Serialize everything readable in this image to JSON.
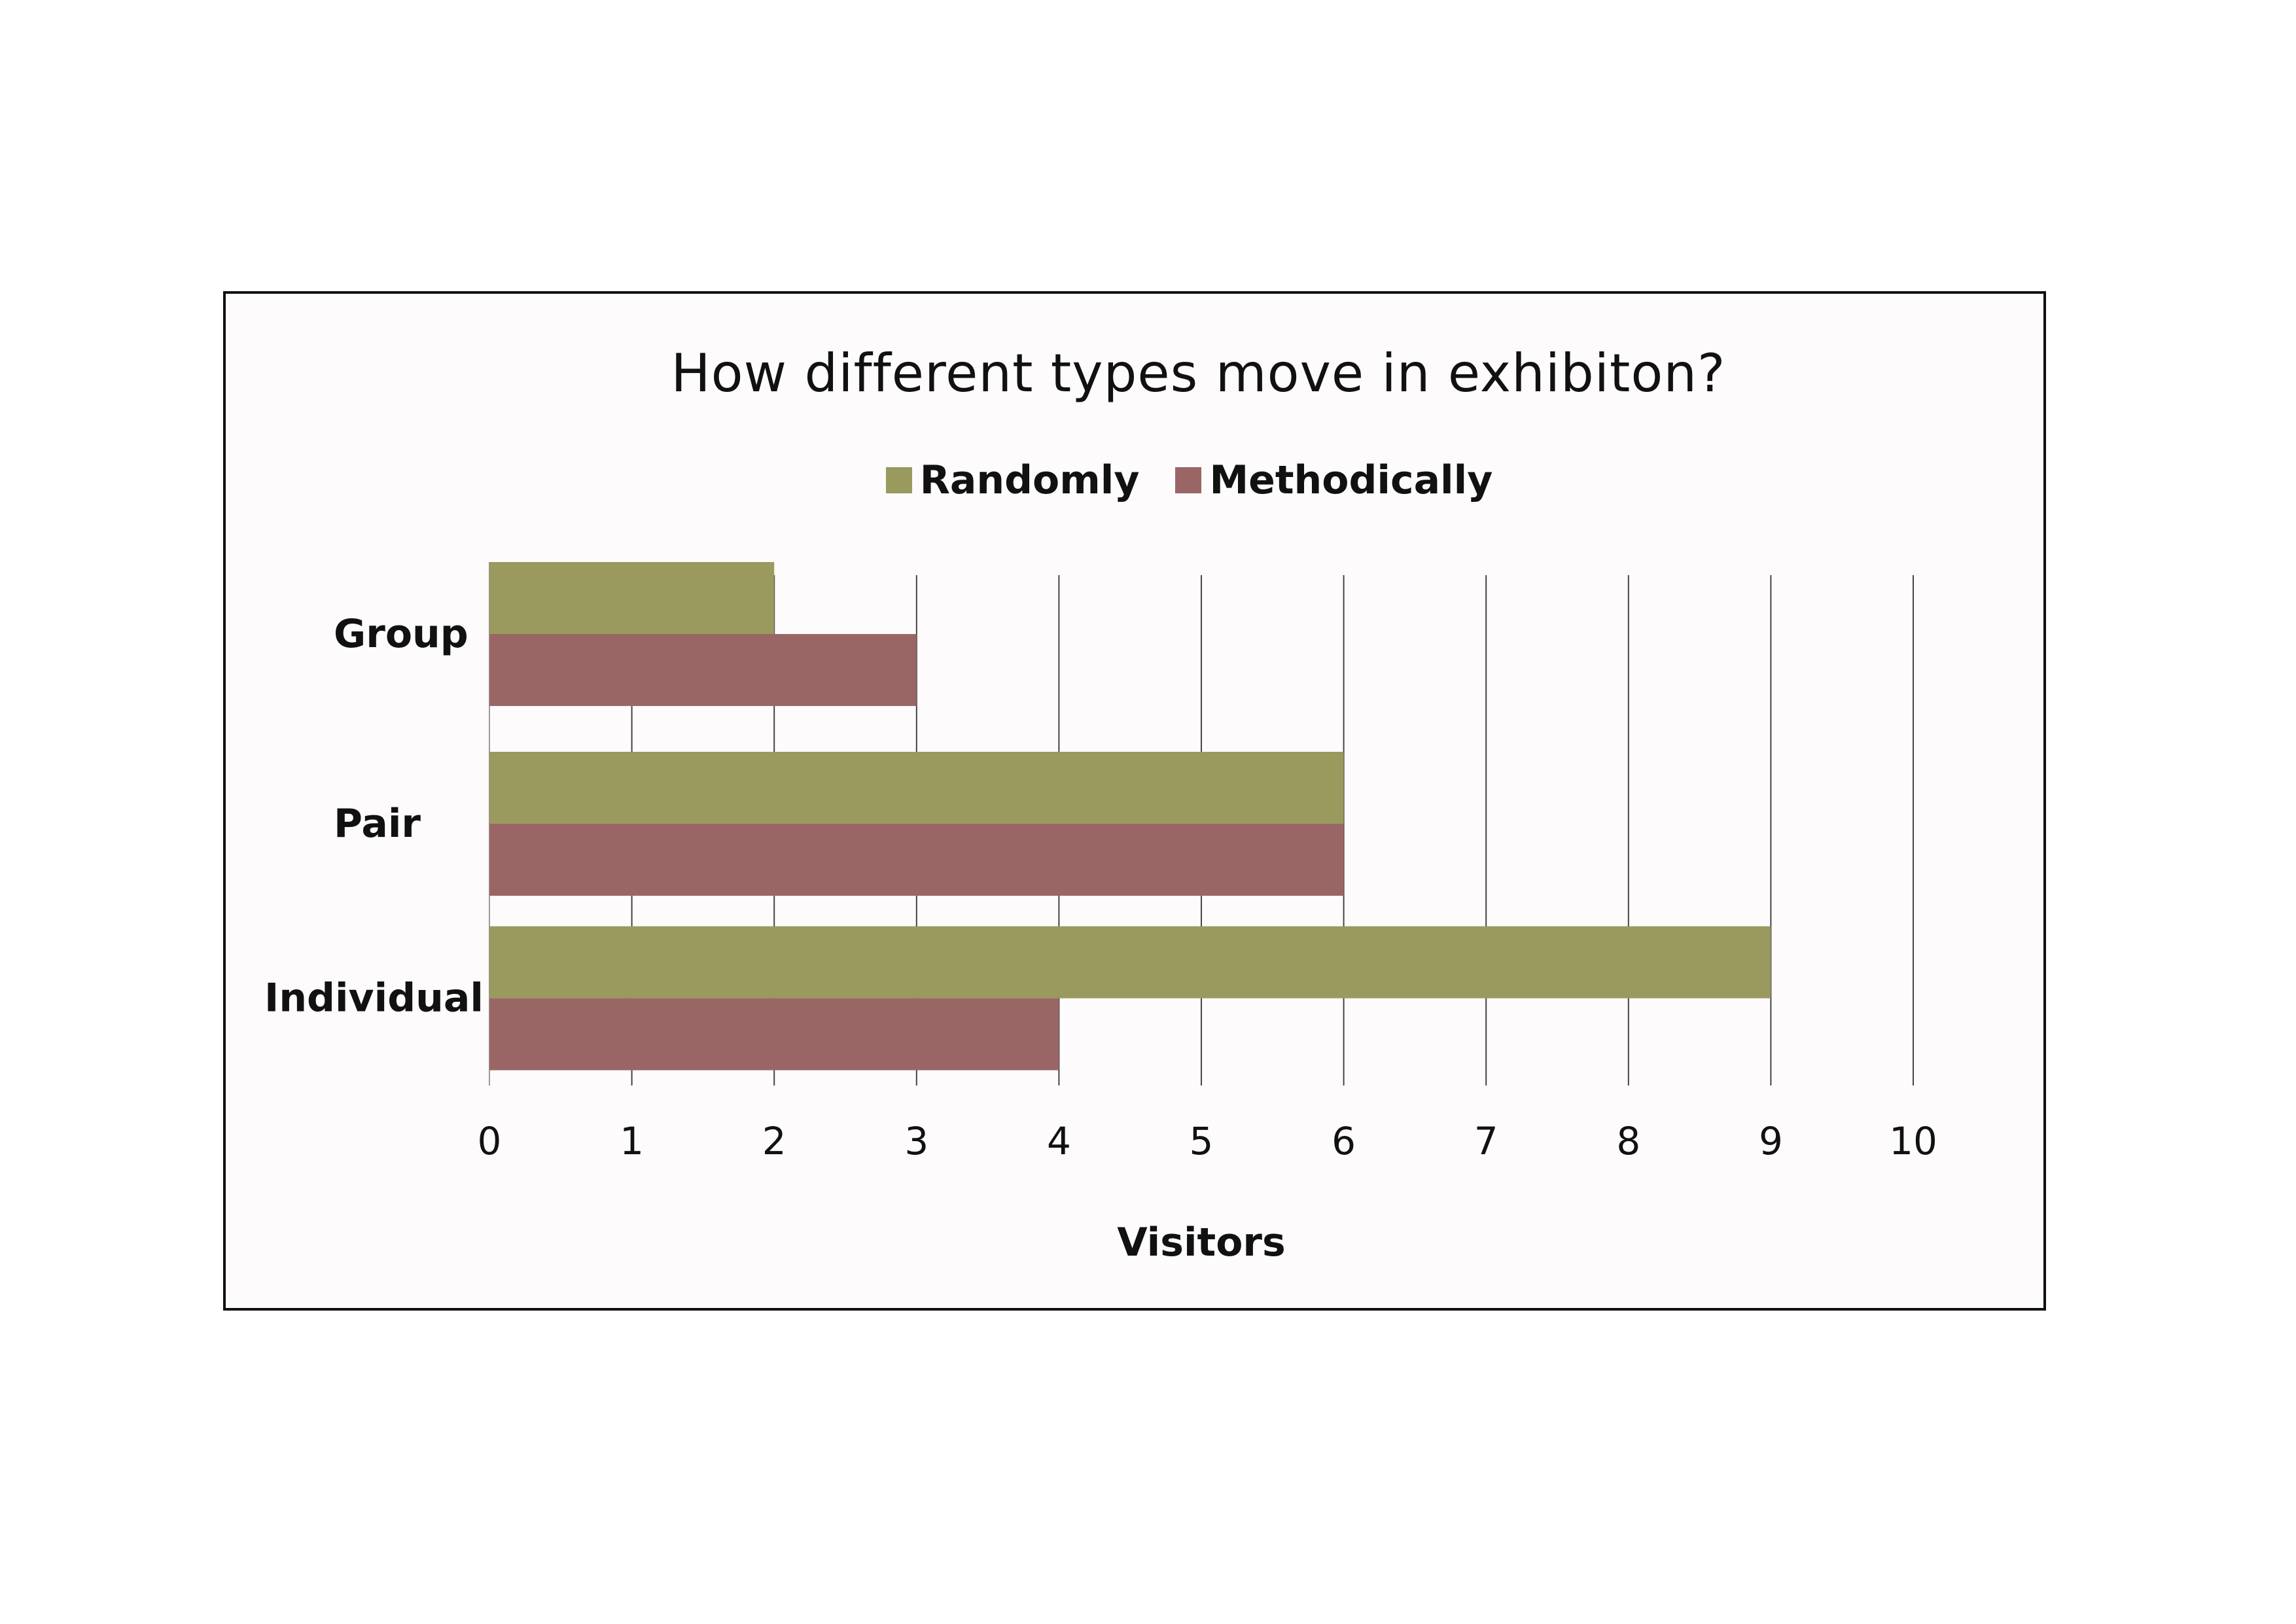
{
  "chart_data": {
    "type": "bar",
    "orientation": "horizontal",
    "title": "How different types move in exhibiton?",
    "xlabel": "Visitors",
    "ylabel": "",
    "categories": [
      "Group",
      "Pair",
      "Individual"
    ],
    "series": [
      {
        "name": "Randomly",
        "color": "#9a995e",
        "values": [
          2,
          6,
          9
        ]
      },
      {
        "name": "Methodically",
        "color": "#9a6665",
        "values": [
          3,
          6,
          4
        ]
      }
    ],
    "xlim": [
      0,
      10
    ],
    "x_ticks": [
      "0",
      "1",
      "2",
      "3",
      "4",
      "5",
      "6",
      "7",
      "8",
      "9",
      "10"
    ],
    "grid": "vertical",
    "legend_position": "top"
  }
}
